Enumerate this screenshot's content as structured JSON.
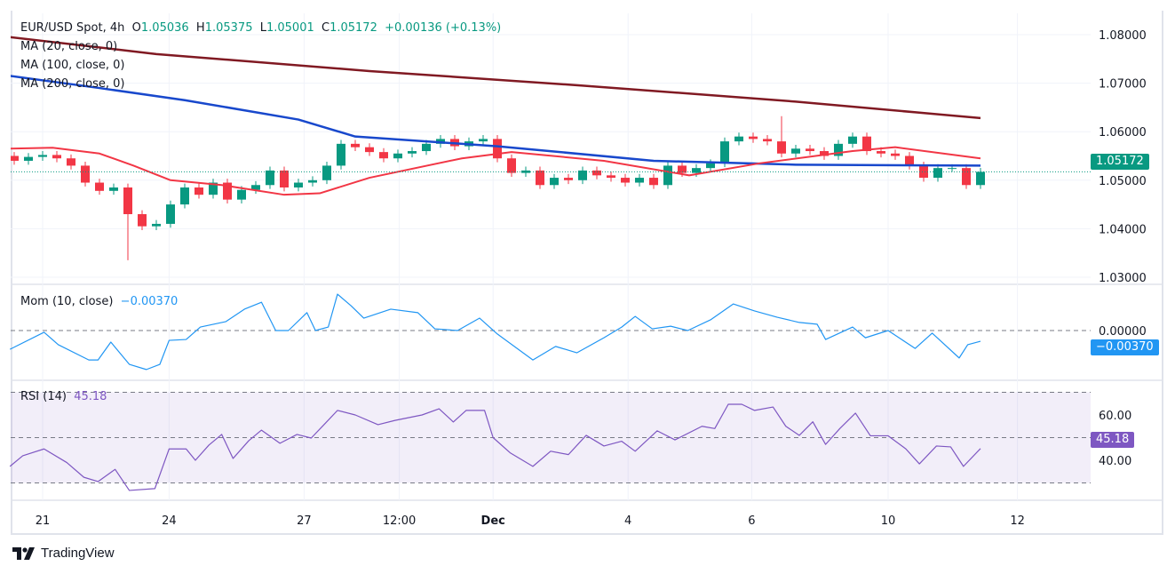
{
  "header": {
    "symbol": "EUR/USD Spot, 4h",
    "open_label": "O",
    "open": "1.05036",
    "high_label": "H",
    "high": "1.05375",
    "low_label": "L",
    "low": "1.05001",
    "close_label": "C",
    "close": "1.05172",
    "change": "+0.00136 (+0.13%)"
  },
  "indicators": {
    "ma20": "MA (20, close, 0)",
    "ma100": "MA (100, close, 0)",
    "ma200": "MA (200, close, 0)",
    "mom_label": "Mom (10, close)",
    "mom_value": "−0.00370",
    "rsi_label": "RSI (14)",
    "rsi_value": "45.18"
  },
  "price_tag": "1.05172",
  "mom_tag": "−0.00370",
  "rsi_tag": "45.18",
  "footer": {
    "brand": "TradingView"
  },
  "colors": {
    "up": "#089981",
    "down": "#f23645",
    "ma20": "#f23645",
    "ma100": "#1848cc",
    "ma200": "#801922",
    "mom": "#2196f3",
    "rsi": "#7e57c2"
  },
  "chart_data": [
    {
      "type": "candlestick",
      "title": "EUR/USD Spot, 4h",
      "price_ticks": [
        "1.08000",
        "1.07000",
        "1.06000",
        "1.05000",
        "1.04000",
        "1.03000"
      ],
      "price_tick_values": [
        1.08,
        1.07,
        1.06,
        1.05,
        1.04,
        1.03
      ],
      "ylim": [
        1.029,
        1.084
      ],
      "time_ticks": [
        {
          "label": "21",
          "bar": 2
        },
        {
          "label": "24",
          "bar": 10.9
        },
        {
          "label": "27",
          "bar": 20.4
        },
        {
          "label": "12:00",
          "bar": 27.1
        },
        {
          "label": "Dec",
          "bar": 33.7,
          "bold": true
        },
        {
          "label": "4",
          "bar": 43.2
        },
        {
          "label": "6",
          "bar": 51.9
        },
        {
          "label": "10",
          "bar": 61.5
        },
        {
          "label": "12",
          "bar": 70.6
        }
      ],
      "first_open": 1.055,
      "closes": [
        1.054,
        1.0548,
        1.0552,
        1.0545,
        1.053,
        1.0495,
        1.0478,
        1.0485,
        1.043,
        1.0405,
        1.041,
        1.045,
        1.0485,
        1.047,
        1.0495,
        1.046,
        1.048,
        1.049,
        1.052,
        1.0485,
        1.0495,
        1.05,
        1.053,
        1.0575,
        1.0568,
        1.0558,
        1.0545,
        1.0555,
        1.056,
        1.0575,
        1.0585,
        1.057,
        1.058,
        1.0585,
        1.0545,
        1.0515,
        1.052,
        1.049,
        1.0505,
        1.05,
        1.052,
        1.051,
        1.0505,
        1.0495,
        1.0505,
        1.049,
        1.053,
        1.0515,
        1.0525,
        1.0535,
        1.058,
        1.059,
        1.0585,
        1.058,
        1.0555,
        1.0565,
        1.056,
        1.055,
        1.0575,
        1.059,
        1.056,
        1.0555,
        1.055,
        1.053,
        1.0505,
        1.0525,
        1.0525,
        1.049,
        1.05172
      ],
      "wick_extremes": {
        "8": {
          "low": 1.0335
        },
        "54": {
          "high": 1.0632
        }
      },
      "ma200": [
        [
          -0.3,
          1.0795
        ],
        [
          10,
          1.076
        ],
        [
          25,
          1.0725
        ],
        [
          40,
          1.0695
        ],
        [
          55,
          1.0662
        ],
        [
          68,
          1.0628
        ]
      ],
      "ma100": [
        [
          -0.3,
          1.0715
        ],
        [
          6,
          1.069
        ],
        [
          12,
          1.0665
        ],
        [
          20,
          1.0625
        ],
        [
          24,
          1.059
        ],
        [
          34,
          1.057
        ],
        [
          45,
          1.054
        ],
        [
          55,
          1.0532
        ],
        [
          68,
          1.053
        ]
      ],
      "ma20": [
        [
          -0.3,
          1.0565
        ],
        [
          2.7,
          1.0567
        ],
        [
          6,
          1.0555
        ],
        [
          8.4,
          1.053
        ],
        [
          11,
          1.05
        ],
        [
          14.6,
          1.049
        ],
        [
          19,
          1.047
        ],
        [
          21.5,
          1.0473
        ],
        [
          25,
          1.0505
        ],
        [
          31.5,
          1.0545
        ],
        [
          35,
          1.0558
        ],
        [
          41.5,
          1.054
        ],
        [
          47.5,
          1.051
        ],
        [
          52.5,
          1.0535
        ],
        [
          59,
          1.056
        ],
        [
          62,
          1.0568
        ],
        [
          68,
          1.0545
        ]
      ]
    },
    {
      "type": "line",
      "title": "Mom (10, close)",
      "ticks": [
        "0.00000"
      ],
      "tick_values": [
        0
      ],
      "series": [
        [
          -0.3,
          -0.0065
        ],
        [
          2.1,
          -0.0006
        ],
        [
          3.1,
          -0.0049
        ],
        [
          5.25,
          -0.0102
        ],
        [
          5.9,
          -0.0102
        ],
        [
          6.8,
          -0.004
        ],
        [
          8.1,
          -0.0117
        ],
        [
          9.3,
          -0.0135
        ],
        [
          10.25,
          -0.0117
        ],
        [
          10.9,
          -0.0034
        ],
        [
          12.1,
          -0.0031
        ],
        [
          13.1,
          0.0012
        ],
        [
          14.9,
          0.0031
        ],
        [
          16.2,
          0.0074
        ],
        [
          17.4,
          0.0098
        ],
        [
          18.4,
          0
        ],
        [
          19.3,
          0
        ],
        [
          20.6,
          0.0062
        ],
        [
          21.2,
          0
        ],
        [
          22.1,
          0.0012
        ],
        [
          22.75,
          0.0126
        ],
        [
          23.7,
          0.0086
        ],
        [
          24.6,
          0.0043
        ],
        [
          26.5,
          0.0074
        ],
        [
          28.4,
          0.0062
        ],
        [
          29.6,
          0.0006
        ],
        [
          31.2,
          0
        ],
        [
          32.75,
          0.0043
        ],
        [
          34,
          -0.0012
        ],
        [
          36.5,
          -0.0102
        ],
        [
          38.1,
          -0.0055
        ],
        [
          39.6,
          -0.0077
        ],
        [
          41.5,
          -0.0025
        ],
        [
          42.75,
          0.0012
        ],
        [
          43.7,
          0.0049
        ],
        [
          44.9,
          0.0006
        ],
        [
          46.2,
          0.0015
        ],
        [
          47.4,
          0
        ],
        [
          49,
          0.0037
        ],
        [
          50.6,
          0.0092
        ],
        [
          52.1,
          0.0068
        ],
        [
          53.7,
          0.0046
        ],
        [
          55.25,
          0.0028
        ],
        [
          56.5,
          0.0022
        ],
        [
          57.1,
          -0.0031
        ],
        [
          59,
          0.0012
        ],
        [
          59.9,
          -0.0025
        ],
        [
          61.5,
          0
        ],
        [
          63.4,
          -0.0062
        ],
        [
          64.6,
          -0.0009
        ],
        [
          66.5,
          -0.0095
        ],
        [
          67.1,
          -0.0049
        ],
        [
          68,
          -0.0037
        ]
      ]
    },
    {
      "type": "line",
      "title": "RSI (14)",
      "ticks": [
        "60.00",
        "40.00"
      ],
      "tick_values": [
        60,
        40
      ],
      "bands": [
        70,
        50,
        30
      ],
      "series": [
        [
          -0.3,
          37.3
        ],
        [
          0.6,
          42
        ],
        [
          2.1,
          45
        ],
        [
          3.7,
          39
        ],
        [
          4.9,
          32.5
        ],
        [
          5.9,
          30.6
        ],
        [
          7.1,
          36
        ],
        [
          8.1,
          26.7
        ],
        [
          9.9,
          27.5
        ],
        [
          10.9,
          45
        ],
        [
          12.1,
          45
        ],
        [
          12.75,
          40
        ],
        [
          13.7,
          46.7
        ],
        [
          14.6,
          51.4
        ],
        [
          15.4,
          40.8
        ],
        [
          16.5,
          48.6
        ],
        [
          17.4,
          53.3
        ],
        [
          18.7,
          47.5
        ],
        [
          19.9,
          51.4
        ],
        [
          20.9,
          49.8
        ],
        [
          21.8,
          55.7
        ],
        [
          22.75,
          62
        ],
        [
          24,
          60
        ],
        [
          25.6,
          55.7
        ],
        [
          26.8,
          57.6
        ],
        [
          28.7,
          60
        ],
        [
          29.9,
          62.7
        ],
        [
          30.9,
          56.9
        ],
        [
          31.8,
          62
        ],
        [
          33.1,
          62
        ],
        [
          33.7,
          50
        ],
        [
          34.9,
          43.3
        ],
        [
          36.5,
          37.3
        ],
        [
          37.75,
          44
        ],
        [
          39,
          42.5
        ],
        [
          40.25,
          51
        ],
        [
          41.5,
          46.3
        ],
        [
          42.75,
          48.4
        ],
        [
          43.7,
          44
        ],
        [
          45.25,
          53
        ],
        [
          46.5,
          49
        ],
        [
          48.4,
          55
        ],
        [
          49.3,
          54
        ],
        [
          50.25,
          64.7
        ],
        [
          51.2,
          64.7
        ],
        [
          52.1,
          62
        ],
        [
          53.4,
          63.5
        ],
        [
          54.3,
          55
        ],
        [
          55.25,
          51
        ],
        [
          56.2,
          57
        ],
        [
          57.1,
          47
        ],
        [
          58.1,
          54
        ],
        [
          59.2,
          60.8
        ],
        [
          60.25,
          50.8
        ],
        [
          61.5,
          50.8
        ],
        [
          62.75,
          45
        ],
        [
          63.7,
          38.4
        ],
        [
          64.9,
          46.3
        ],
        [
          65.9,
          45.9
        ],
        [
          66.8,
          37.3
        ],
        [
          68,
          45.18
        ]
      ]
    }
  ]
}
